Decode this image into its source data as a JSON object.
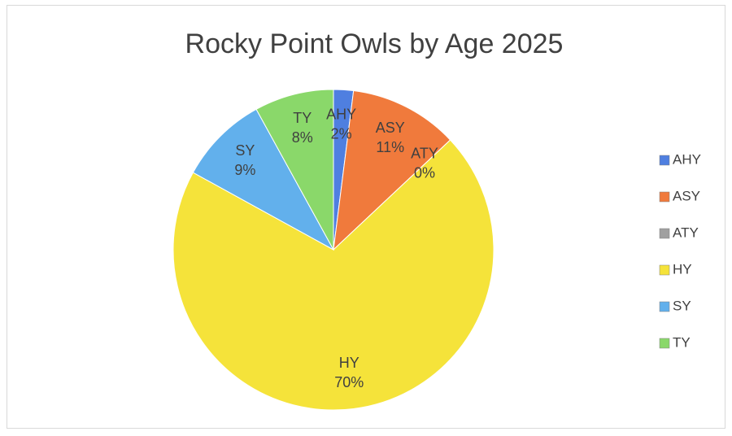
{
  "chart_data": {
    "type": "pie",
    "title": "Rocky Point Owls by Age 2025",
    "categories": [
      "AHY",
      "ASY",
      "ATY",
      "HY",
      "SY",
      "TY"
    ],
    "values": [
      2,
      11,
      0,
      70,
      9,
      8
    ],
    "value_labels": [
      "2%",
      "11%",
      "0%",
      "70%",
      "9%",
      "8%"
    ],
    "colors": [
      "#4f7fe0",
      "#f07a3c",
      "#a0a0a0",
      "#f5e33a",
      "#62b0ec",
      "#8ad86a"
    ],
    "legend": "right"
  }
}
